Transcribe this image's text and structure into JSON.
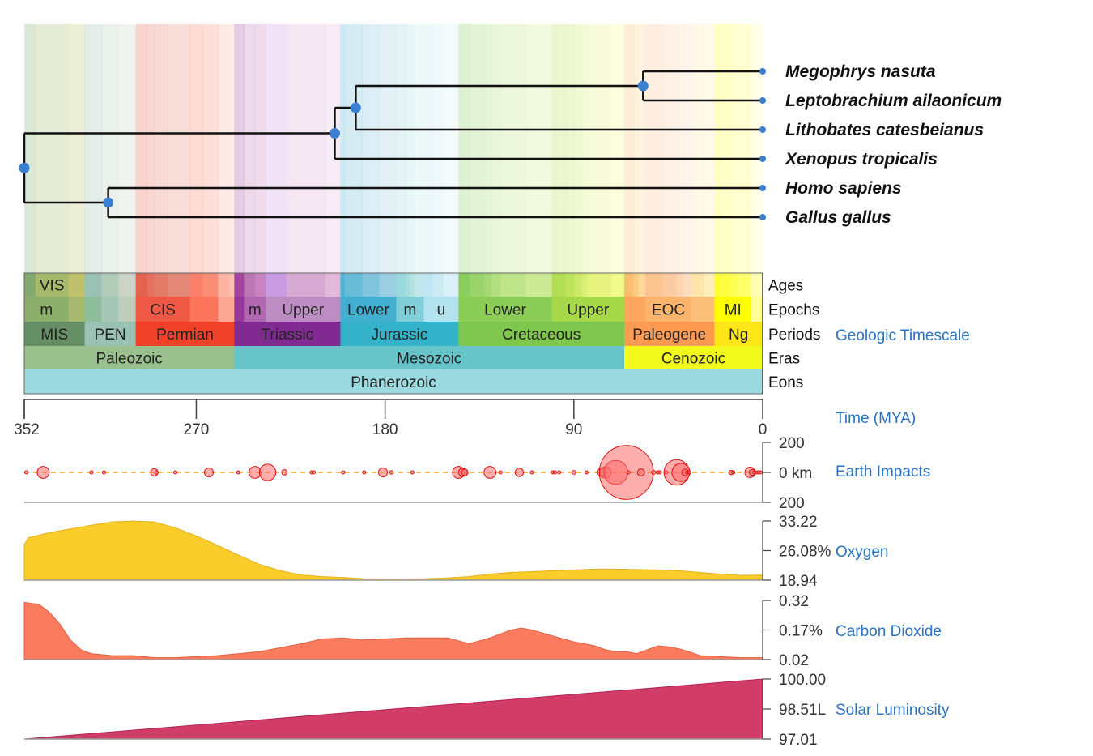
{
  "colors": {
    "node": "#3a7fd0",
    "branch": "#111111",
    "link_text": "#2a73c4",
    "oxygen": "#fbcd2a",
    "oxygen_stroke": "#e3b11a",
    "co2": "#fb7b5e",
    "co2_stroke": "#e15f42",
    "luminosity": "#d23c68",
    "luminosity_stroke": "#b02352",
    "impact_fill": "#ff6b6b",
    "impact_stroke": "#e01010",
    "impact_line": "#f5a623"
  },
  "tree": {
    "leaves": [
      {
        "name": "Megophrys nasuta"
      },
      {
        "name": "Leptobrachium ailaonicum"
      },
      {
        "name": "Lithobates catesbeianus"
      },
      {
        "name": "Xenopus tropicalis"
      },
      {
        "name": "Homo sapiens"
      },
      {
        "name": "Gallus gallus"
      }
    ],
    "nodes": [
      {
        "id": "root",
        "age": 352,
        "children": [
          "amphibians",
          "amniotes"
        ]
      },
      {
        "id": "amniotes",
        "age": 312,
        "children": [
          "Homo sapiens",
          "Gallus gallus"
        ]
      },
      {
        "id": "amphibians",
        "age": 204,
        "children": [
          "ranid_megophryid",
          "Xenopus tropicalis"
        ]
      },
      {
        "id": "ranid_megophryid",
        "age": 194,
        "children": [
          "megophryids",
          "Lithobates catesbeianus"
        ]
      },
      {
        "id": "megophryids",
        "age": 57,
        "children": [
          "Megophrys nasuta",
          "Leptobrachium ailaonicum"
        ]
      }
    ]
  },
  "timescale": {
    "title": "Geologic Timescale",
    "row_labels": [
      "Ages",
      "Epochs",
      "Periods",
      "Eras",
      "Eons"
    ],
    "eons": [
      {
        "name": "Phanerozoic",
        "start": 352,
        "end": 0,
        "color": "#9ad9df"
      }
    ],
    "eras": [
      {
        "name": "Paleozoic",
        "start": 352,
        "end": 251.9,
        "color": "#99c08d"
      },
      {
        "name": "Mesozoic",
        "start": 251.9,
        "end": 66,
        "color": "#67c5ca"
      },
      {
        "name": "Cenozoic",
        "start": 66,
        "end": 0,
        "color": "#f2f91d"
      }
    ],
    "periods": [
      {
        "name": "MIS",
        "start": 352,
        "end": 323.2,
        "color": "#678f66"
      },
      {
        "name": "PEN",
        "start": 323.2,
        "end": 298.9,
        "color": "#99c2b5"
      },
      {
        "name": "Permian",
        "start": 298.9,
        "end": 251.9,
        "color": "#f04028"
      },
      {
        "name": "Triassic",
        "start": 251.9,
        "end": 201.3,
        "color": "#812b92"
      },
      {
        "name": "Jurassic",
        "start": 201.3,
        "end": 145,
        "color": "#34b2c9"
      },
      {
        "name": "Cretaceous",
        "start": 145,
        "end": 66,
        "color": "#7fc64e"
      },
      {
        "name": "Paleogene",
        "start": 66,
        "end": 23,
        "color": "#fd9a52"
      },
      {
        "name": "Ng",
        "start": 23,
        "end": 0,
        "color": "#ffe619"
      }
    ],
    "epochs": [
      {
        "name": "m",
        "start": 352,
        "end": 330.9,
        "color": "#8cb06c"
      },
      {
        "name": "",
        "start": 330.9,
        "end": 323.2,
        "color": "#a6b96c"
      },
      {
        "name": "",
        "start": 323.2,
        "end": 315.2,
        "color": "#8cbe9c"
      },
      {
        "name": "",
        "start": 315.2,
        "end": 307,
        "color": "#a6c7b7"
      },
      {
        "name": "",
        "start": 307,
        "end": 298.9,
        "color": "#bfd0ba"
      },
      {
        "name": "CIS",
        "start": 298.9,
        "end": 273.01,
        "color": "#ef5845"
      },
      {
        "name": "",
        "start": 273.01,
        "end": 259.51,
        "color": "#fb745c"
      },
      {
        "name": "",
        "start": 259.51,
        "end": 251.9,
        "color": "#fca794"
      },
      {
        "name": "",
        "start": 251.9,
        "end": 247.2,
        "color": "#983999"
      },
      {
        "name": "m",
        "start": 247.2,
        "end": 237,
        "color": "#b168b1"
      },
      {
        "name": "Upper",
        "start": 237,
        "end": 201.3,
        "color": "#bd8cc3"
      },
      {
        "name": "Lower",
        "start": 201.3,
        "end": 174.7,
        "color": "#42aed0"
      },
      {
        "name": "m",
        "start": 174.7,
        "end": 161.5,
        "color": "#80cfd8"
      },
      {
        "name": "u",
        "start": 161.5,
        "end": 145,
        "color": "#b3e3ee"
      },
      {
        "name": "Lower",
        "start": 145,
        "end": 100.5,
        "color": "#8ccd57"
      },
      {
        "name": "Upper",
        "start": 100.5,
        "end": 66,
        "color": "#a6d84a"
      },
      {
        "name": "",
        "start": 66,
        "end": 56,
        "color": "#fda75f"
      },
      {
        "name": "EOC",
        "start": 56,
        "end": 33.9,
        "color": "#fdb46c"
      },
      {
        "name": "",
        "start": 33.9,
        "end": 23,
        "color": "#fdc07a"
      },
      {
        "name": "MI",
        "start": 23,
        "end": 5.333,
        "color": "#ffff00"
      },
      {
        "name": "",
        "start": 5.333,
        "end": 0,
        "color": "#ffff99"
      }
    ],
    "ages": [
      {
        "name": "",
        "start": 352,
        "end": 346.7,
        "color": "#80ab6c"
      },
      {
        "name": "VIS",
        "start": 346.7,
        "end": 330.9,
        "color": "#a6b96c"
      },
      {
        "name": "",
        "start": 330.9,
        "end": 323.2,
        "color": "#bfc26b"
      },
      {
        "name": "",
        "start": 323.2,
        "end": 315.2,
        "color": "#99c2b5"
      },
      {
        "name": "",
        "start": 315.2,
        "end": 307,
        "color": "#b3cbb9"
      },
      {
        "name": "",
        "start": 307,
        "end": 298.9,
        "color": "#ccd4c7"
      },
      {
        "name": "",
        "start": 298.9,
        "end": 293.52,
        "color": "#e36350"
      },
      {
        "name": "",
        "start": 293.52,
        "end": 290.1,
        "color": "#e36f5c"
      },
      {
        "name": "",
        "start": 290.1,
        "end": 283.5,
        "color": "#e37b68"
      },
      {
        "name": "",
        "start": 283.5,
        "end": 273.01,
        "color": "#e38776"
      },
      {
        "name": "",
        "start": 273.01,
        "end": 266.9,
        "color": "#fb8069"
      },
      {
        "name": "",
        "start": 266.9,
        "end": 259.51,
        "color": "#fb8d76"
      },
      {
        "name": "",
        "start": 259.51,
        "end": 254.14,
        "color": "#fcb4a2"
      },
      {
        "name": "",
        "start": 254.14,
        "end": 251.9,
        "color": "#fcc0b2"
      },
      {
        "name": "",
        "start": 251.9,
        "end": 247.2,
        "color": "#a4469f"
      },
      {
        "name": "",
        "start": 247.2,
        "end": 242,
        "color": "#bc75b5"
      },
      {
        "name": "",
        "start": 242,
        "end": 237,
        "color": "#c983bf"
      },
      {
        "name": "",
        "start": 237,
        "end": 227,
        "color": "#c99be3"
      },
      {
        "name": "",
        "start": 227,
        "end": 208.5,
        "color": "#d6aad3"
      },
      {
        "name": "",
        "start": 208.5,
        "end": 201.3,
        "color": "#e3b9db"
      },
      {
        "name": "",
        "start": 201.3,
        "end": 199.3,
        "color": "#4eb3d3"
      },
      {
        "name": "",
        "start": 199.3,
        "end": 190.8,
        "color": "#67bcd8"
      },
      {
        "name": "",
        "start": 190.8,
        "end": 182.7,
        "color": "#80c5dd"
      },
      {
        "name": "",
        "start": 182.7,
        "end": 174.7,
        "color": "#99cee3"
      },
      {
        "name": "",
        "start": 174.7,
        "end": 170.3,
        "color": "#9ad9dd"
      },
      {
        "name": "",
        "start": 170.3,
        "end": 168.3,
        "color": "#a6dde0"
      },
      {
        "name": "",
        "start": 168.3,
        "end": 166.1,
        "color": "#b3e2e3"
      },
      {
        "name": "",
        "start": 166.1,
        "end": 163.5,
        "color": "#bfe7e5"
      },
      {
        "name": "",
        "start": 163.5,
        "end": 157.3,
        "color": "#bfe7f1"
      },
      {
        "name": "",
        "start": 157.3,
        "end": 152.1,
        "color": "#cceaf4"
      },
      {
        "name": "",
        "start": 152.1,
        "end": 145,
        "color": "#d9f1f7"
      },
      {
        "name": "",
        "start": 145,
        "end": 139.8,
        "color": "#8ccd60"
      },
      {
        "name": "",
        "start": 139.8,
        "end": 132.6,
        "color": "#99d36a"
      },
      {
        "name": "",
        "start": 132.6,
        "end": 129.4,
        "color": "#a6d975"
      },
      {
        "name": "",
        "start": 129.4,
        "end": 125,
        "color": "#b3df7f"
      },
      {
        "name": "",
        "start": 125,
        "end": 113,
        "color": "#bfe48a"
      },
      {
        "name": "",
        "start": 113,
        "end": 100.5,
        "color": "#cce994"
      },
      {
        "name": "",
        "start": 100.5,
        "end": 93.9,
        "color": "#b3de53"
      },
      {
        "name": "",
        "start": 93.9,
        "end": 89.8,
        "color": "#bfe35d"
      },
      {
        "name": "",
        "start": 89.8,
        "end": 86.3,
        "color": "#cce968"
      },
      {
        "name": "",
        "start": 86.3,
        "end": 83.6,
        "color": "#d9ef74"
      },
      {
        "name": "",
        "start": 83.6,
        "end": 72.1,
        "color": "#e6f47f"
      },
      {
        "name": "",
        "start": 72.1,
        "end": 66,
        "color": "#f2fa8c"
      },
      {
        "name": "",
        "start": 66,
        "end": 61.6,
        "color": "#fdbf6f"
      },
      {
        "name": "",
        "start": 61.6,
        "end": 59.2,
        "color": "#fecc81"
      },
      {
        "name": "",
        "start": 59.2,
        "end": 56,
        "color": "#fed99a"
      },
      {
        "name": "",
        "start": 56,
        "end": 47.8,
        "color": "#fcc490"
      },
      {
        "name": "",
        "start": 47.8,
        "end": 41.2,
        "color": "#fccca0"
      },
      {
        "name": "",
        "start": 41.2,
        "end": 37.71,
        "color": "#fdd5b0"
      },
      {
        "name": "",
        "start": 37.71,
        "end": 33.9,
        "color": "#fdddc0"
      },
      {
        "name": "",
        "start": 33.9,
        "end": 27.82,
        "color": "#fee6aa"
      },
      {
        "name": "",
        "start": 27.82,
        "end": 23,
        "color": "#feeebb"
      },
      {
        "name": "",
        "start": 23,
        "end": 20.44,
        "color": "#ffff33"
      },
      {
        "name": "",
        "start": 20.44,
        "end": 15.97,
        "color": "#ffff41"
      },
      {
        "name": "",
        "start": 15.97,
        "end": 13.82,
        "color": "#ffff4d"
      },
      {
        "name": "",
        "start": 13.82,
        "end": 11.63,
        "color": "#ffff59"
      },
      {
        "name": "",
        "start": 11.63,
        "end": 7.246,
        "color": "#ffff66"
      },
      {
        "name": "",
        "start": 7.246,
        "end": 5.333,
        "color": "#ffff73"
      },
      {
        "name": "",
        "start": 5.333,
        "end": 0,
        "color": "#ffffb3"
      }
    ]
  },
  "time_axis": {
    "label": "Time (MYA)",
    "ticks": [
      352,
      270,
      180,
      90,
      0
    ]
  },
  "panels": {
    "impacts": {
      "label": "Earth Impacts",
      "ticks": [
        "200",
        "0 km",
        "200"
      ]
    },
    "oxygen": {
      "label": "Oxygen",
      "ticks": [
        "33.22",
        "26.08%",
        "18.94"
      ]
    },
    "co2": {
      "label": "Carbon Dioxide",
      "ticks": [
        "0.32",
        "0.17%",
        "0.02"
      ]
    },
    "luminosity": {
      "label": "Solar Luminosity",
      "ticks": [
        "100.00",
        "98.51L",
        "97.01"
      ]
    }
  },
  "chart_data": [
    {
      "type": "scatter",
      "ylabel": "Earth Impacts",
      "xlim": [
        352,
        0
      ],
      "ylim": [
        -200,
        200
      ],
      "x": [
        351,
        343,
        320,
        314,
        290,
        289,
        280,
        264,
        250,
        242,
        236,
        228,
        215,
        214,
        200,
        190,
        181,
        177,
        167,
        145,
        143,
        142,
        130,
        125,
        116,
        110,
        100,
        99,
        97,
        90,
        84,
        77,
        75,
        70,
        65,
        64,
        58,
        52,
        50,
        49,
        46,
        41,
        39,
        37,
        36,
        35,
        15,
        14,
        6,
        5,
        4,
        3,
        2,
        1
      ],
      "y": [
        0,
        0,
        0,
        0,
        0,
        0,
        0,
        0,
        0,
        0,
        0,
        0,
        0,
        0,
        0,
        0,
        0,
        0,
        0,
        0,
        0,
        0,
        0,
        0,
        0,
        0,
        0,
        0,
        0,
        0,
        0,
        0,
        0,
        0,
        0,
        0,
        0,
        0,
        0,
        0,
        0,
        0,
        0,
        0,
        0,
        0,
        0,
        0,
        0,
        0,
        0,
        0,
        0,
        0
      ],
      "diameter_km": [
        6,
        40,
        5,
        5,
        25,
        12,
        6,
        30,
        6,
        40,
        55,
        18,
        8,
        5,
        6,
        6,
        30,
        12,
        6,
        40,
        28,
        22,
        40,
        6,
        28,
        8,
        10,
        8,
        5,
        13,
        8,
        28,
        38,
        80,
        180,
        10,
        24,
        14,
        10,
        8,
        10,
        85,
        60,
        22,
        10,
        6,
        15,
        8,
        35,
        20,
        10,
        8,
        6,
        5
      ]
    },
    {
      "type": "area",
      "ylabel": "Oxygen",
      "xlim": [
        352,
        0
      ],
      "ylim": [
        18.94,
        33.22
      ],
      "x": [
        352,
        350,
        340,
        330,
        320,
        310,
        300,
        290,
        280,
        270,
        260,
        250,
        240,
        230,
        220,
        210,
        200,
        190,
        180,
        170,
        160,
        150,
        140,
        130,
        120,
        110,
        100,
        90,
        80,
        70,
        60,
        50,
        40,
        30,
        20,
        10,
        0
      ],
      "y": [
        27.5,
        29.2,
        30.4,
        31.3,
        32.2,
        33.0,
        33.2,
        33.0,
        31.6,
        29.6,
        27.4,
        25.0,
        22.8,
        21.2,
        20.2,
        19.8,
        19.6,
        19.3,
        19.2,
        19.2,
        19.3,
        19.5,
        19.8,
        20.4,
        20.8,
        21.0,
        21.2,
        21.4,
        21.6,
        21.6,
        21.5,
        21.4,
        21.2,
        20.8,
        20.4,
        20.1,
        20.2
      ]
    },
    {
      "type": "area",
      "ylabel": "Carbon Dioxide",
      "xlim": [
        352,
        0
      ],
      "ylim": [
        0.02,
        0.32
      ],
      "x": [
        352,
        345,
        340,
        335,
        330,
        325,
        320,
        310,
        300,
        290,
        280,
        270,
        260,
        250,
        240,
        230,
        220,
        210,
        200,
        190,
        180,
        170,
        160,
        150,
        140,
        130,
        120,
        115,
        110,
        100,
        90,
        80,
        75,
        70,
        65,
        60,
        55,
        50,
        45,
        40,
        35,
        30,
        20,
        10,
        0
      ],
      "y": [
        0.31,
        0.3,
        0.26,
        0.2,
        0.12,
        0.07,
        0.05,
        0.04,
        0.04,
        0.03,
        0.03,
        0.035,
        0.04,
        0.05,
        0.06,
        0.08,
        0.1,
        0.125,
        0.13,
        0.12,
        0.125,
        0.13,
        0.13,
        0.13,
        0.1,
        0.13,
        0.17,
        0.18,
        0.17,
        0.14,
        0.11,
        0.09,
        0.07,
        0.06,
        0.06,
        0.05,
        0.07,
        0.09,
        0.085,
        0.075,
        0.06,
        0.04,
        0.035,
        0.03,
        0.03
      ]
    },
    {
      "type": "area",
      "ylabel": "Solar Luminosity",
      "xlim": [
        352,
        0
      ],
      "ylim": [
        97.01,
        100.0
      ],
      "x": [
        352,
        0
      ],
      "y": [
        97.01,
        100.0
      ]
    }
  ]
}
